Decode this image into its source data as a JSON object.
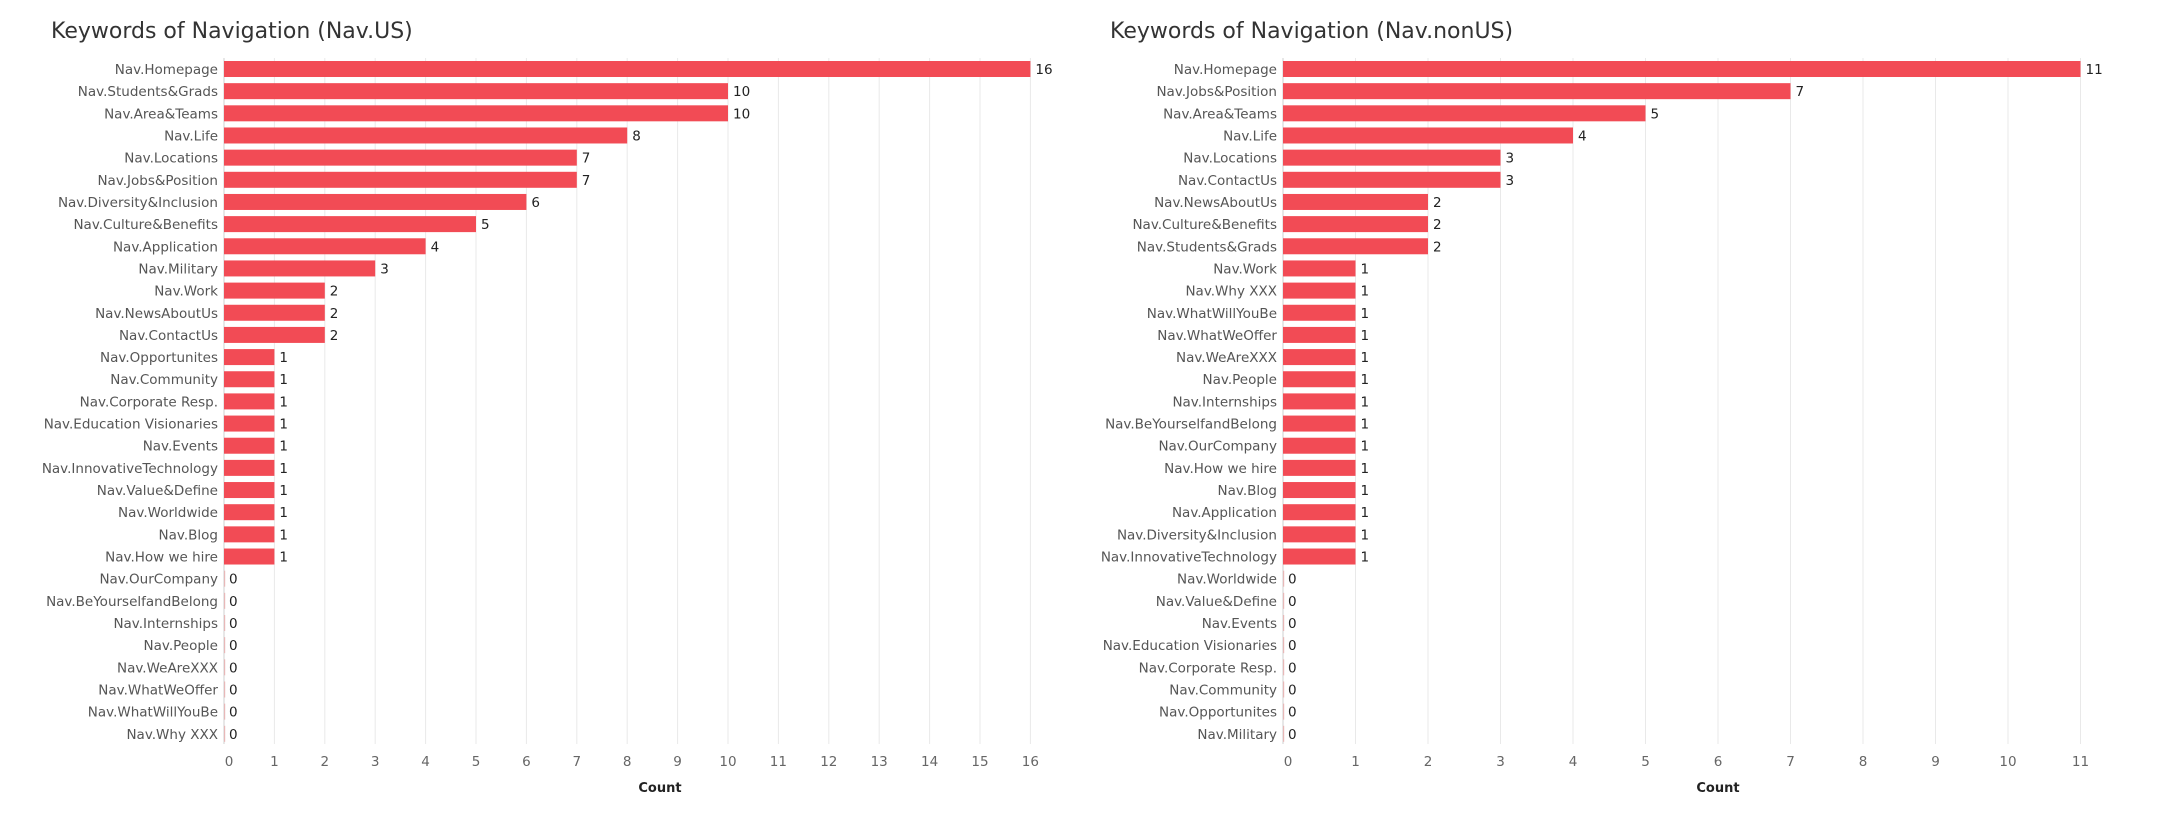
{
  "colors": {
    "bar": "#f24b55",
    "zero_bar": "#e8b8b8"
  },
  "chart_data": [
    {
      "type": "bar",
      "orientation": "horizontal",
      "title": "Keywords of Navigation (Nav.US)",
      "xlabel": "Count",
      "xlim": [
        0,
        17
      ],
      "xticks": [
        0,
        1,
        2,
        3,
        4,
        5,
        6,
        7,
        8,
        9,
        10,
        11,
        12,
        13,
        14,
        15,
        16,
        17
      ],
      "grid": true,
      "categories": [
        "Nav.Homepage",
        "Nav.Students&Grads",
        "Nav.Area&Teams",
        "Nav.Life",
        "Nav.Locations",
        "Nav.Jobs&Position",
        "Nav.Diversity&Inclusion",
        "Nav.Culture&Benefits",
        "Nav.Application",
        "Nav.Military",
        "Nav.Work",
        "Nav.NewsAboutUs",
        "Nav.ContactUs",
        "Nav.Opportunites",
        "Nav.Community",
        "Nav.Corporate Resp.",
        "Nav.Education Visionaries",
        "Nav.Events",
        "Nav.InnovativeTechnology",
        "Nav.Value&Define",
        "Nav.Worldwide",
        "Nav.Blog",
        "Nav.How we hire",
        "Nav.OurCompany",
        "Nav.BeYourselfandBelong",
        "Nav.Internships",
        "Nav.People",
        "Nav.WeAreXXX",
        "Nav.WhatWeOffer",
        "Nav.WhatWillYouBe",
        "Nav.Why XXX"
      ],
      "values": [
        16,
        10,
        10,
        8,
        7,
        7,
        6,
        5,
        4,
        3,
        2,
        2,
        2,
        1,
        1,
        1,
        1,
        1,
        1,
        1,
        1,
        1,
        1,
        0,
        0,
        0,
        0,
        0,
        0,
        0,
        0
      ]
    },
    {
      "type": "bar",
      "orientation": "horizontal",
      "title": "Keywords of Navigation (Nav.nonUS)",
      "xlabel": "Count",
      "xlim": [
        0,
        11.6
      ],
      "xticks": [
        0,
        1,
        2,
        3,
        4,
        5,
        6,
        7,
        8,
        9,
        10,
        11
      ],
      "grid": true,
      "categories": [
        "Nav.Homepage",
        "Nav.Jobs&Position",
        "Nav.Area&Teams",
        "Nav.Life",
        "Nav.Locations",
        "Nav.ContactUs",
        "Nav.NewsAboutUs",
        "Nav.Culture&Benefits",
        "Nav.Students&Grads",
        "Nav.Work",
        "Nav.Why XXX",
        "Nav.WhatWillYouBe",
        "Nav.WhatWeOffer",
        "Nav.WeAreXXX",
        "Nav.People",
        "Nav.Internships",
        "Nav.BeYourselfandBelong",
        "Nav.OurCompany",
        "Nav.How we hire",
        "Nav.Blog",
        "Nav.Application",
        "Nav.Diversity&Inclusion",
        "Nav.InnovativeTechnology",
        "Nav.Worldwide",
        "Nav.Value&Define",
        "Nav.Events",
        "Nav.Education Visionaries",
        "Nav.Corporate Resp.",
        "Nav.Community",
        "Nav.Opportunites",
        "Nav.Military"
      ],
      "values": [
        11,
        7,
        5,
        4,
        3,
        3,
        2,
        2,
        2,
        1,
        1,
        1,
        1,
        1,
        1,
        1,
        1,
        1,
        1,
        1,
        1,
        1,
        1,
        0,
        0,
        0,
        0,
        0,
        0,
        0,
        0
      ]
    }
  ]
}
